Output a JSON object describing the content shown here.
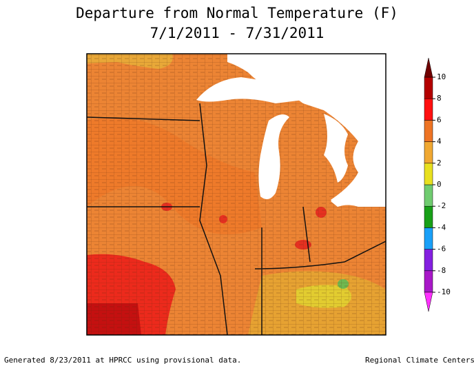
{
  "title": "Departure from Normal Temperature (F)",
  "subtitle": "7/1/2011 - 7/31/2011",
  "legend": {
    "min": -10,
    "max": 10,
    "ticks": [
      10,
      8,
      6,
      4,
      2,
      0,
      -2,
      -4,
      -6,
      -8,
      -10
    ],
    "colors": [
      "#a818c8",
      "#8420e0",
      "#1aa0f8",
      "#18a018",
      "#70cc70",
      "#e8e020",
      "#f0a832",
      "#ee7424",
      "#ff1010",
      "#b40000"
    ],
    "over_color": "#700000",
    "under_color": "#ff30ff"
  },
  "footer_left": "Generated 8/23/2011 at HPRCC using provisional data.",
  "footer_right": "Regional Climate Centers"
}
